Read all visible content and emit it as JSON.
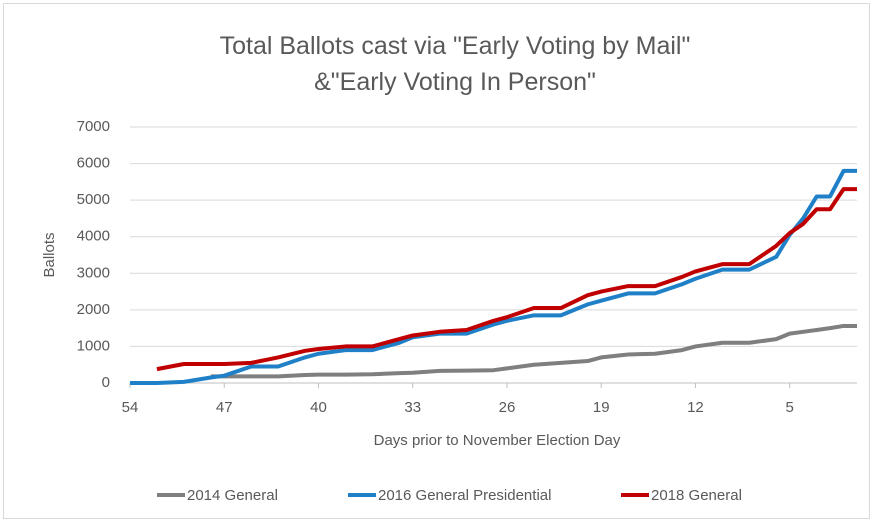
{
  "chart_data": {
    "type": "line",
    "title": "Total Ballots cast via \"Early Voting by Mail\" &\"Early Voting In Person\"",
    "x_label": "Days prior to November Election Day",
    "y_label": "Ballots",
    "x": [
      54,
      52,
      50,
      48,
      47,
      45,
      43,
      41,
      40,
      38,
      36,
      34,
      33,
      31,
      29,
      27,
      26,
      24,
      22,
      20,
      19,
      17,
      15,
      13,
      12,
      10,
      8,
      6,
      5,
      4,
      3,
      2,
      1,
      0
    ],
    "xlim": [
      54,
      0
    ],
    "xticks": [
      54,
      47,
      40,
      33,
      26,
      19,
      12,
      5
    ],
    "ylim": [
      0,
      7000
    ],
    "yticks": [
      0,
      1000,
      2000,
      3000,
      4000,
      5000,
      6000,
      7000
    ],
    "grid": true,
    "legend": "bottom",
    "series": [
      {
        "name": "2014 General",
        "color": "#7f7f7f",
        "values": [
          null,
          null,
          null,
          180,
          180,
          180,
          180,
          220,
          230,
          230,
          240,
          270,
          280,
          330,
          340,
          350,
          400,
          500,
          550,
          600,
          700,
          780,
          800,
          900,
          1000,
          1100,
          1100,
          1200,
          1350,
          1400,
          1450,
          1500,
          1560,
          1560
        ]
      },
      {
        "name": "2016 General Presidential",
        "color": "#1f80c8",
        "values": [
          0,
          0,
          30,
          150,
          200,
          450,
          450,
          700,
          800,
          900,
          900,
          1100,
          1250,
          1350,
          1350,
          1600,
          1700,
          1850,
          1850,
          2150,
          2250,
          2450,
          2450,
          2700,
          2850,
          3100,
          3100,
          3450,
          4050,
          4500,
          5100,
          5100,
          5800,
          5800
        ]
      },
      {
        "name": "2018 General",
        "color": "#c00000",
        "values": [
          null,
          380,
          520,
          520,
          520,
          550,
          700,
          880,
          930,
          1000,
          1000,
          1200,
          1300,
          1400,
          1450,
          1700,
          1800,
          2050,
          2050,
          2400,
          2500,
          2650,
          2650,
          2900,
          3050,
          3250,
          3250,
          3750,
          4100,
          4350,
          4750,
          4750,
          5300,
          5300
        ]
      }
    ]
  }
}
